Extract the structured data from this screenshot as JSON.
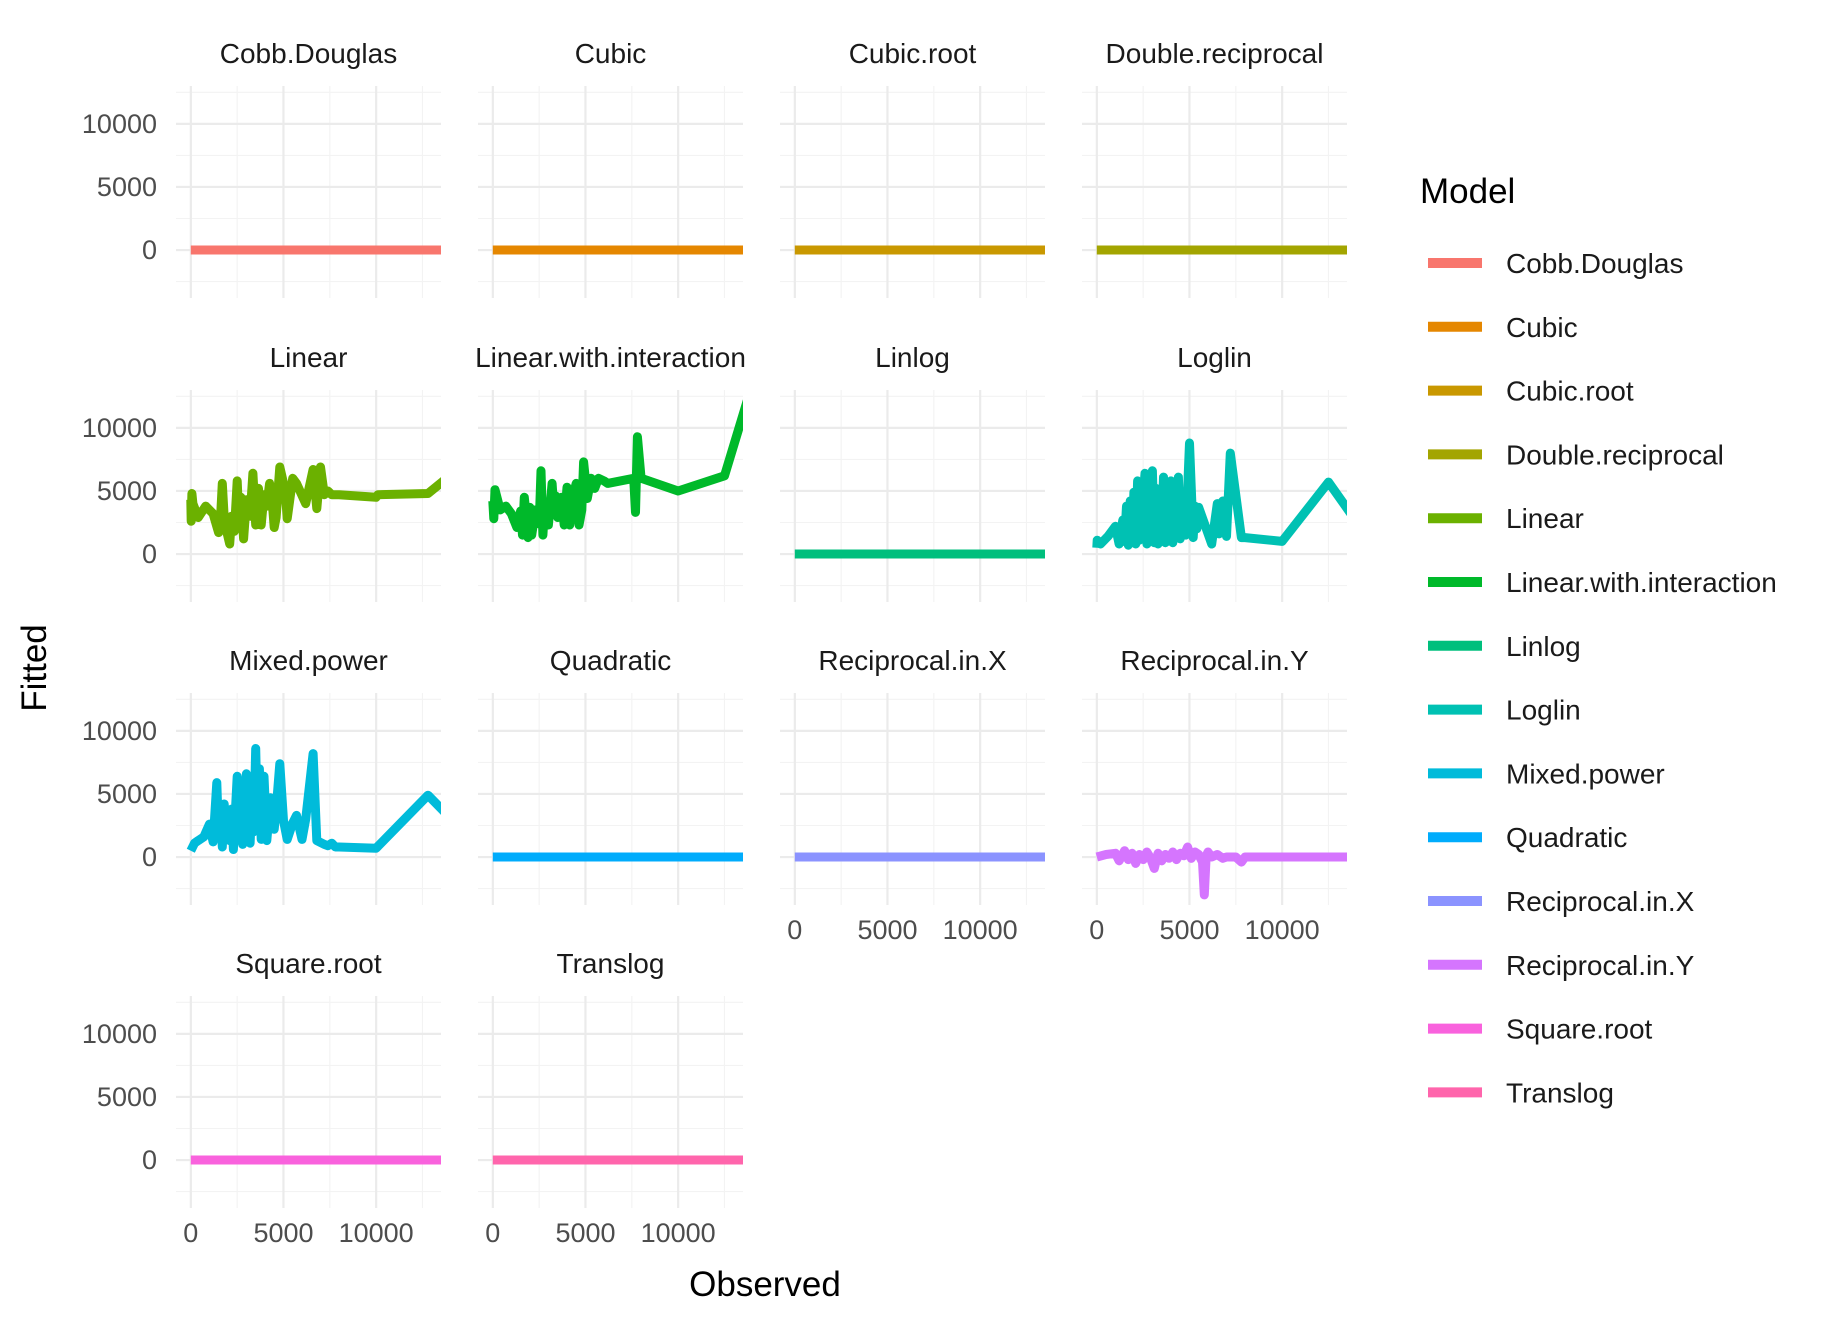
{
  "chart_data": {
    "type": "line",
    "facet_wrap": true,
    "xlabel": "Observed",
    "ylabel": "Fitted",
    "xlim": [
      -800,
      13500
    ],
    "ylim": [
      -3800,
      13000
    ],
    "x_ticks": [
      0,
      5000,
      10000
    ],
    "x_tick_labels": [
      "0",
      "5000",
      "10000"
    ],
    "y_ticks": [
      0,
      5000,
      10000
    ],
    "y_tick_labels": [
      "0",
      "5000",
      "10000"
    ],
    "grid": true,
    "legend": {
      "title": "Model",
      "position": "right"
    },
    "panels": [
      {
        "name": "Cobb.Douglas",
        "color": "#F8766D",
        "x": [
          0,
          1000,
          3000,
          6000,
          9000,
          12500,
          13800
        ],
        "y": [
          0,
          0,
          0,
          0,
          0,
          0,
          0
        ]
      },
      {
        "name": "Cubic",
        "color": "#E58700",
        "x": [
          0,
          1000,
          3000,
          6000,
          9000,
          12500,
          13800
        ],
        "y": [
          0,
          0,
          0,
          0,
          0,
          0,
          0
        ]
      },
      {
        "name": "Cubic.root",
        "color": "#C99800",
        "x": [
          0,
          1000,
          3000,
          6000,
          9000,
          12500,
          13800
        ],
        "y": [
          0,
          0,
          0,
          0,
          0,
          0,
          0
        ]
      },
      {
        "name": "Double.reciprocal",
        "color": "#A3A500",
        "x": [
          0,
          1000,
          3000,
          6000,
          9000,
          12500,
          13800
        ],
        "y": [
          0,
          0,
          0,
          0,
          0,
          0,
          0
        ]
      },
      {
        "name": "Linear",
        "color": "#6BB100",
        "x": [
          0,
          20,
          60,
          110,
          400,
          800,
          1200,
          1500,
          1600,
          1700,
          1800,
          1950,
          2100,
          2200,
          2350,
          2500,
          2600,
          2700,
          2850,
          3000,
          3200,
          3350,
          3500,
          3650,
          3800,
          3950,
          4100,
          4250,
          4400,
          4500,
          4600,
          4800,
          5100,
          5200,
          5500,
          5700,
          6200,
          6600,
          6800,
          7000,
          7200,
          7400,
          7600,
          8000,
          10000,
          10100,
          12800,
          13800
        ],
        "y": [
          4300,
          2600,
          4800,
          4000,
          2900,
          3800,
          3200,
          1700,
          2800,
          5600,
          2900,
          1700,
          800,
          3000,
          1800,
          5800,
          2300,
          4500,
          1200,
          4300,
          3000,
          6400,
          2300,
          5200,
          2300,
          4700,
          3800,
          5600,
          4000,
          2100,
          2900,
          6900,
          5000,
          2800,
          6000,
          5600,
          4000,
          6700,
          3600,
          6900,
          4700,
          5000,
          4700,
          4700,
          4500,
          4700,
          4800,
          6000
        ]
      },
      {
        "name": "Linear.with.interaction",
        "color": "#00B92A",
        "x": [
          0,
          50,
          120,
          400,
          700,
          1000,
          1300,
          1500,
          1600,
          1700,
          1800,
          1900,
          2000,
          2100,
          2200,
          2300,
          2500,
          2600,
          2700,
          2800,
          3000,
          3200,
          3300,
          3400,
          3500,
          3700,
          3850,
          4000,
          4150,
          4300,
          4500,
          4650,
          4800,
          4900,
          5100,
          5300,
          5500,
          5700,
          6000,
          6200,
          7600,
          7700,
          7800,
          8000,
          10000,
          12500,
          13800
        ],
        "y": [
          4200,
          2800,
          5100,
          3500,
          3800,
          3200,
          2100,
          3400,
          1500,
          4500,
          3000,
          1300,
          3700,
          1500,
          2500,
          3500,
          2400,
          6600,
          1500,
          3900,
          2300,
          5600,
          3300,
          4600,
          2900,
          4500,
          2300,
          5300,
          2300,
          4500,
          5600,
          2300,
          3500,
          7300,
          4400,
          6000,
          5200,
          6000,
          5800,
          5600,
          6000,
          3300,
          9300,
          6000,
          5000,
          6200,
          12500
        ]
      },
      {
        "name": "Linlog",
        "color": "#00BF7D",
        "x": [
          0,
          1000,
          3000,
          6000,
          9000,
          12500,
          13800
        ],
        "y": [
          0,
          0,
          0,
          0,
          0,
          0,
          0
        ]
      },
      {
        "name": "Loglin",
        "color": "#00C1B3",
        "x": [
          0,
          20,
          200,
          600,
          1000,
          1200,
          1400,
          1500,
          1600,
          1700,
          1800,
          1900,
          2000,
          2100,
          2200,
          2300,
          2400,
          2600,
          2700,
          2800,
          2900,
          3000,
          3100,
          3200,
          3300,
          3400,
          3500,
          3600,
          3700,
          3800,
          3900,
          4000,
          4100,
          4200,
          4300,
          4400,
          4500,
          4600,
          4800,
          5000,
          5200,
          5300,
          5400,
          5500,
          6200,
          6500,
          6600,
          6800,
          7000,
          7200,
          7800,
          8000,
          10000,
          12500,
          13800
        ],
        "y": [
          500,
          1100,
          800,
          1400,
          2200,
          800,
          2700,
          1000,
          3800,
          700,
          4200,
          900,
          4900,
          800,
          5800,
          1100,
          2500,
          6400,
          800,
          3600,
          1400,
          6600,
          900,
          5200,
          800,
          3000,
          1800,
          6100,
          900,
          3600,
          1200,
          5800,
          900,
          4400,
          1300,
          6100,
          1200,
          4000,
          1500,
          8800,
          1300,
          3800,
          2000,
          3700,
          800,
          4000,
          1600,
          4200,
          1400,
          8000,
          1300,
          1300,
          1000,
          5700,
          3000
        ]
      },
      {
        "name": "Mixed.power",
        "color": "#00BBDA",
        "x": [
          0,
          200,
          400,
          700,
          1000,
          1200,
          1400,
          1500,
          1600,
          1700,
          1800,
          1900,
          2000,
          2100,
          2200,
          2300,
          2500,
          2600,
          2700,
          2800,
          3000,
          3200,
          3300,
          3400,
          3500,
          3600,
          3700,
          3800,
          3950,
          4100,
          4300,
          4500,
          4600,
          4800,
          5000,
          5200,
          5500,
          5700,
          6000,
          6200,
          6600,
          6800,
          7200,
          7400,
          7600,
          7800,
          8000,
          10000,
          12800,
          13800
        ],
        "y": [
          500,
          1100,
          1300,
          1600,
          2600,
          1200,
          5900,
          1600,
          3600,
          800,
          4200,
          1600,
          2800,
          1300,
          3800,
          600,
          6400,
          1800,
          4400,
          1000,
          6600,
          1100,
          4700,
          2000,
          8600,
          2100,
          7000,
          1400,
          6400,
          1300,
          4700,
          2200,
          3700,
          7400,
          2900,
          1400,
          2700,
          3300,
          1400,
          3000,
          8200,
          1300,
          1000,
          900,
          1100,
          800,
          800,
          700,
          4900,
          3400
        ]
      },
      {
        "name": "Quadratic",
        "color": "#00ACFC",
        "x": [
          0,
          1000,
          3000,
          6000,
          9000,
          12500,
          13800
        ],
        "y": [
          0,
          0,
          0,
          0,
          0,
          0,
          0
        ]
      },
      {
        "name": "Reciprocal.in.X",
        "color": "#8B93FF",
        "x": [
          0,
          1000,
          3000,
          6000,
          9000,
          12500,
          13800
        ],
        "y": [
          0,
          0,
          0,
          0,
          0,
          0,
          0
        ]
      },
      {
        "name": "Reciprocal.in.Y",
        "color": "#D575FE",
        "x": [
          0,
          500,
          1000,
          1200,
          1500,
          1700,
          1900,
          2100,
          2300,
          2500,
          2700,
          2900,
          3100,
          3300,
          3500,
          3700,
          3900,
          4100,
          4300,
          4500,
          4700,
          4900,
          5100,
          5300,
          5500,
          5700,
          5800,
          5900,
          6000,
          6200,
          6500,
          6800,
          7000,
          7500,
          7800,
          8000,
          8200,
          10000,
          13800
        ],
        "y": [
          0,
          200,
          300,
          -300,
          500,
          -200,
          300,
          -500,
          200,
          -200,
          400,
          -100,
          -900,
          300,
          -300,
          200,
          -100,
          400,
          -200,
          300,
          100,
          800,
          -100,
          400,
          200,
          -400,
          -3000,
          100,
          400,
          0,
          200,
          -100,
          0,
          0,
          -400,
          0,
          0,
          0,
          0
        ]
      },
      {
        "name": "Square.root",
        "color": "#F962DD",
        "x": [
          0,
          1000,
          3000,
          6000,
          9000,
          12500,
          13800
        ],
        "y": [
          0,
          0,
          0,
          0,
          0,
          0,
          0
        ]
      },
      {
        "name": "Translog",
        "color": "#FF65AC",
        "x": [
          0,
          1000,
          3000,
          6000,
          9000,
          12500,
          13800
        ],
        "y": [
          0,
          0,
          0,
          0,
          0,
          0,
          0
        ]
      }
    ]
  }
}
